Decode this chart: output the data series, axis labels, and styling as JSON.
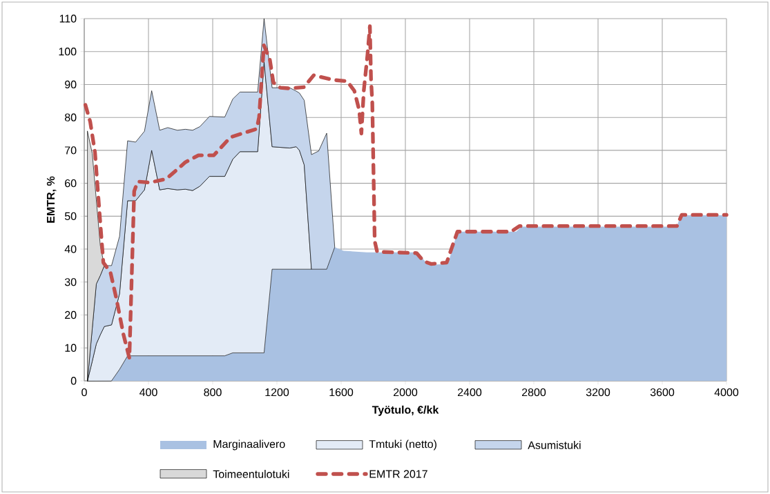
{
  "chart_data": {
    "type": "area",
    "stacked": true,
    "xlabel": "Työtulo, €/kk",
    "ylabel": "EMTR, %",
    "x": [
      20,
      50,
      75,
      100,
      125,
      170,
      220,
      270,
      320,
      375,
      420,
      470,
      520,
      580,
      630,
      675,
      720,
      780,
      875,
      925,
      970,
      1080,
      1120,
      1170,
      1280,
      1320,
      1340,
      1370,
      1415,
      1460,
      1510,
      1560,
      1615,
      1760,
      2070,
      2145,
      2265,
      2325,
      2690,
      2725,
      3690,
      3715,
      4000
    ],
    "series": [
      {
        "name": "Marginaalivero",
        "color": "#a9c1e2",
        "values": [
          0,
          0,
          0,
          0,
          0,
          0,
          3.5,
          7.6,
          7.6,
          7.6,
          7.6,
          7.6,
          7.6,
          7.6,
          7.6,
          7.6,
          7.6,
          7.6,
          7.6,
          8.5,
          8.5,
          8.5,
          8.5,
          33.9,
          33.9,
          33.9,
          33.9,
          33.9,
          33.9,
          33.9,
          33.9,
          40.6,
          39.5,
          39,
          39,
          35.2,
          35.5,
          45.3,
          45.3,
          46.8,
          46.8,
          50.3,
          50.3
        ]
      },
      {
        "name": "Tmtuki (netto)",
        "color": "#e3ebf6",
        "values": [
          0,
          6,
          11.2,
          14,
          16.5,
          17,
          23,
          47.1,
          47.1,
          50.4,
          62.4,
          50.4,
          50.8,
          50.4,
          50.6,
          50.2,
          51.5,
          54.5,
          54.5,
          58.8,
          61.1,
          61.1,
          88.3,
          37.2,
          36.8,
          37.2,
          36.1,
          31.7,
          0,
          null,
          null,
          null,
          null,
          null,
          null,
          null,
          null,
          null,
          null,
          null,
          null,
          null,
          null
        ]
      },
      {
        "name": "Asumistuki",
        "color": "#c5d5ec",
        "values": [
          0,
          10,
          18.2,
          18,
          18.5,
          18,
          17.4,
          18.2,
          17.8,
          17.8,
          18.1,
          18.1,
          18.5,
          18.1,
          18.2,
          18.3,
          18.1,
          18.2,
          18,
          18.3,
          18.1,
          18.1,
          13.2,
          17.9,
          18.3,
          16.9,
          17.4,
          19.6,
          34.8,
          35.9,
          41.3,
          0,
          null,
          null,
          null,
          null,
          null,
          null,
          null,
          null,
          null,
          null,
          null
        ]
      },
      {
        "name": "Toimeentulotuki",
        "color": "#d9d9d9",
        "values": [
          75.8,
          53,
          25.6,
          9,
          0,
          null,
          null,
          null,
          null,
          null,
          null,
          null,
          null,
          null,
          null,
          null,
          null,
          null,
          null,
          null,
          null,
          null,
          null,
          null,
          null,
          null,
          null,
          null,
          null,
          null,
          null,
          null,
          null,
          null,
          null,
          null,
          null,
          null,
          null,
          null,
          null,
          null,
          null
        ]
      },
      {
        "name": "EMTR 2017",
        "type": "line",
        "line_style": "dashed",
        "color": "#c0504d",
        "x": [
          7,
          37,
          67,
          96,
          119,
          163,
          200,
          244,
          281,
          311,
          333,
          407,
          511,
          630,
          711,
          807,
          911,
          1074,
          1089,
          1119,
          1156,
          1178,
          1222,
          1280,
          1369,
          1429,
          1548,
          1637,
          1682,
          1712,
          1726,
          1741,
          1764,
          1779,
          1786,
          1794,
          1809,
          1824,
          2070,
          2115,
          2160,
          2257,
          2324,
          2658,
          2710,
          3691,
          3721,
          4000
        ],
        "values": [
          83.8,
          78.7,
          69.3,
          50.4,
          35.9,
          33,
          25,
          14.1,
          6.9,
          57.6,
          60.5,
          60.2,
          61.3,
          66.4,
          68.5,
          68.5,
          74,
          76.5,
          80.1,
          101.9,
          97.5,
          90.6,
          89,
          88.8,
          89.2,
          92.8,
          91.4,
          91,
          88.1,
          82.3,
          75.1,
          88.1,
          99,
          107.7,
          91.7,
          84.5,
          42.4,
          39.2,
          38.8,
          36.3,
          35.5,
          35.9,
          45.3,
          45.3,
          47,
          47,
          50.4,
          50.4
        ]
      }
    ],
    "xlim": [
      0,
      4000
    ],
    "ylim": [
      0,
      110
    ],
    "xticks": [
      0,
      400,
      800,
      1200,
      1600,
      2000,
      2400,
      2800,
      3200,
      3600,
      4000
    ],
    "yticks": [
      0,
      10,
      20,
      30,
      40,
      50,
      60,
      70,
      80,
      90,
      100,
      110
    ],
    "grid": true,
    "legend": "bottom"
  }
}
